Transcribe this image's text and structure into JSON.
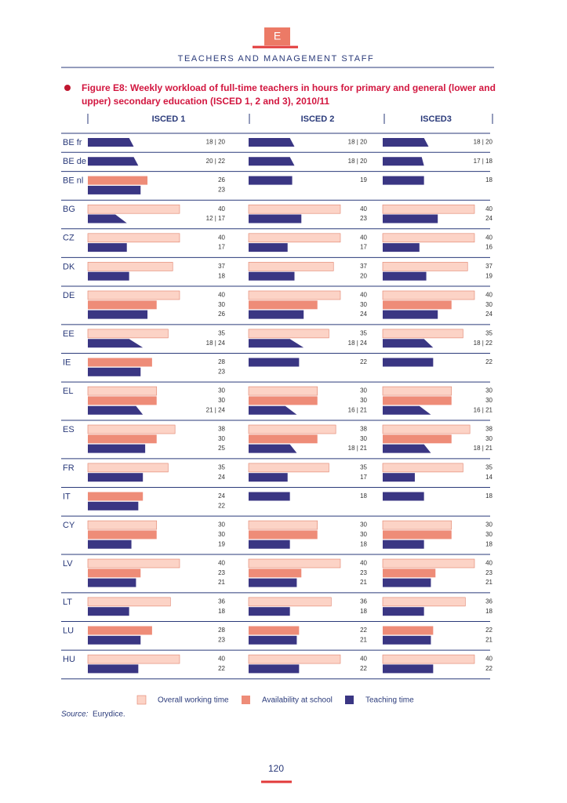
{
  "header": {
    "badge": "E",
    "section": "TEACHERS AND MANAGEMENT STAFF"
  },
  "chart_data": {
    "type": "workload-bar",
    "title": "Figure E8: Weekly workload of full-time teachers in hours for primary and general (lower and upper) secondary education (ISCED 1, 2 and 3), 2010/11",
    "columns": [
      "ISCED 1",
      "ISCED 2",
      "ISCED3"
    ],
    "xlim": [
      0,
      40
    ],
    "series": [
      {
        "name": "Overall working time",
        "color": "#fcd3c6"
      },
      {
        "name": "Availability at school",
        "color": "#ee8c78"
      },
      {
        "name": "Teaching time",
        "color": "#3a3683"
      }
    ],
    "rows": [
      {
        "country": "BE fr",
        "cells": [
          [
            null,
            null,
            {
              "min": 18,
              "max": 20,
              "label": "18 | 20"
            }
          ],
          [
            null,
            null,
            {
              "min": 18,
              "max": 20,
              "label": "18 | 20"
            }
          ],
          [
            null,
            null,
            {
              "min": 18,
              "max": 20,
              "label": "18 | 20"
            }
          ]
        ]
      },
      {
        "country": "BE de",
        "cells": [
          [
            null,
            null,
            {
              "min": 20,
              "max": 22,
              "label": "20 | 22"
            }
          ],
          [
            null,
            null,
            {
              "min": 18,
              "max": 20,
              "label": "18 | 20"
            }
          ],
          [
            null,
            null,
            {
              "min": 17,
              "max": 18,
              "label": "17 | 18"
            }
          ]
        ]
      },
      {
        "country": "BE nl",
        "cells": [
          [
            null,
            26,
            23
          ],
          [
            null,
            null,
            19
          ],
          [
            null,
            null,
            18
          ]
        ]
      },
      {
        "country": "BG",
        "cells": [
          [
            40,
            null,
            {
              "min": 12,
              "max": 17,
              "label": "12 | 17"
            }
          ],
          [
            40,
            null,
            23
          ],
          [
            40,
            null,
            24
          ]
        ]
      },
      {
        "country": "CZ",
        "cells": [
          [
            40,
            null,
            17
          ],
          [
            40,
            null,
            17
          ],
          [
            40,
            null,
            16
          ]
        ]
      },
      {
        "country": "DK",
        "cells": [
          [
            37,
            null,
            18
          ],
          [
            37,
            null,
            20
          ],
          [
            37,
            null,
            19
          ]
        ]
      },
      {
        "country": "DE",
        "cells": [
          [
            40,
            30,
            26
          ],
          [
            40,
            30,
            24
          ],
          [
            40,
            30,
            24
          ]
        ]
      },
      {
        "country": "EE",
        "cells": [
          [
            35,
            null,
            {
              "min": 18,
              "max": 24,
              "label": "18 | 24"
            }
          ],
          [
            35,
            null,
            {
              "min": 18,
              "max": 24,
              "label": "18 | 24"
            }
          ],
          [
            35,
            null,
            {
              "min": 18,
              "max": 22,
              "label": "18 | 22"
            }
          ]
        ]
      },
      {
        "country": "IE",
        "cells": [
          [
            null,
            28,
            23
          ],
          [
            null,
            null,
            22
          ],
          [
            null,
            null,
            22
          ]
        ]
      },
      {
        "country": "EL",
        "cells": [
          [
            30,
            30,
            {
              "min": 21,
              "max": 24,
              "label": "21 | 24"
            }
          ],
          [
            30,
            30,
            {
              "min": 16,
              "max": 21,
              "label": "16 | 21"
            }
          ],
          [
            30,
            30,
            {
              "min": 16,
              "max": 21,
              "label": "16 | 21"
            }
          ]
        ]
      },
      {
        "country": "ES",
        "cells": [
          [
            38,
            30,
            25
          ],
          [
            38,
            30,
            {
              "min": 18,
              "max": 21,
              "label": "18 | 21"
            }
          ],
          [
            38,
            30,
            {
              "min": 18,
              "max": 21,
              "label": "18 | 21"
            }
          ]
        ]
      },
      {
        "country": "FR",
        "cells": [
          [
            35,
            null,
            24
          ],
          [
            35,
            null,
            17
          ],
          [
            35,
            null,
            14
          ]
        ]
      },
      {
        "country": "IT",
        "cells": [
          [
            null,
            24,
            22
          ],
          [
            null,
            null,
            18
          ],
          [
            null,
            null,
            18
          ]
        ]
      },
      {
        "country": "CY",
        "cells": [
          [
            30,
            30,
            19
          ],
          [
            30,
            30,
            18
          ],
          [
            30,
            30,
            18
          ]
        ]
      },
      {
        "country": "LV",
        "cells": [
          [
            40,
            23,
            21
          ],
          [
            40,
            23,
            21
          ],
          [
            40,
            23,
            21
          ]
        ]
      },
      {
        "country": "LT",
        "cells": [
          [
            36,
            null,
            18
          ],
          [
            36,
            null,
            18
          ],
          [
            36,
            null,
            18
          ]
        ]
      },
      {
        "country": "LU",
        "cells": [
          [
            null,
            28,
            23
          ],
          [
            null,
            22,
            21
          ],
          [
            null,
            22,
            21
          ]
        ]
      },
      {
        "country": "HU",
        "cells": [
          [
            40,
            null,
            22
          ],
          [
            40,
            null,
            22
          ],
          [
            40,
            null,
            22
          ]
        ]
      }
    ]
  },
  "source": {
    "label": "Source:",
    "text": "Eurydice."
  },
  "page_number": "120"
}
